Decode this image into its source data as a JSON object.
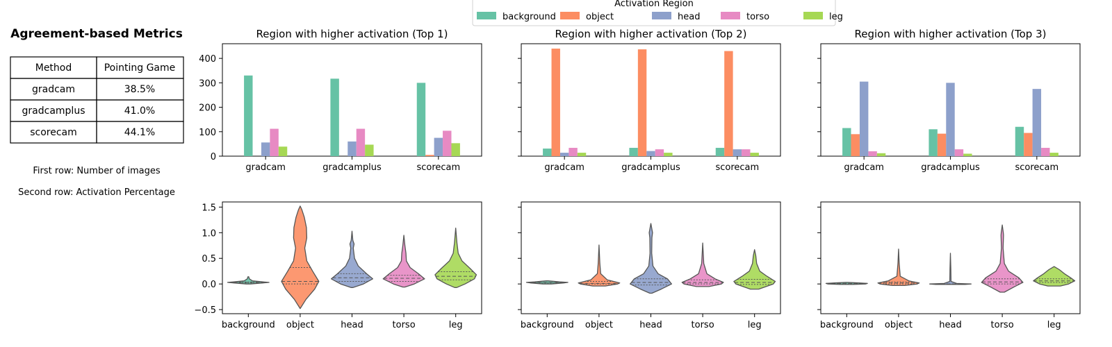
{
  "colors": {
    "background": "#66c2a5",
    "object": "#fc8d62",
    "head": "#8da0cb",
    "torso": "#e78ac3",
    "leg": "#a6d854",
    "violin_edge": "#555555"
  },
  "metrics": {
    "title": "Agreement-based Metrics",
    "columns": [
      "Method",
      "Pointing Game"
    ],
    "rows": [
      [
        "gradcam",
        "38.5%"
      ],
      [
        "gradcamplus",
        "41.0%"
      ],
      [
        "scorecam",
        "44.1%"
      ]
    ],
    "note_1": "First row: Number of images",
    "note_2": "Second row: Activation Percentage"
  },
  "legend": {
    "title": "Activation Region",
    "items": [
      "background",
      "object",
      "head",
      "torso",
      "leg"
    ]
  },
  "chart_data": [
    {
      "type": "bar",
      "title": "Region with higher activation (Top 1)",
      "categories": [
        "gradcam",
        "gradcamplus",
        "scorecam"
      ],
      "ylim": [
        0,
        460
      ],
      "yticks": [
        0,
        100,
        200,
        300,
        400
      ],
      "series": [
        {
          "name": "background",
          "values": [
            330,
            317,
            300
          ]
        },
        {
          "name": "object",
          "values": [
            0,
            0,
            5
          ]
        },
        {
          "name": "head",
          "values": [
            56,
            60,
            75
          ]
        },
        {
          "name": "torso",
          "values": [
            112,
            112,
            104
          ]
        },
        {
          "name": "leg",
          "values": [
            39,
            47,
            53
          ]
        }
      ]
    },
    {
      "type": "bar",
      "title": "Region with higher activation (Top 2)",
      "categories": [
        "gradcam",
        "gradcamplus",
        "scorecam"
      ],
      "ylim": [
        0,
        460
      ],
      "yticks": [
        0,
        100,
        200,
        300,
        400
      ],
      "series": [
        {
          "name": "background",
          "values": [
            31,
            34,
            34
          ]
        },
        {
          "name": "object",
          "values": [
            440,
            437,
            430
          ]
        },
        {
          "name": "head",
          "values": [
            14,
            21,
            28
          ]
        },
        {
          "name": "torso",
          "values": [
            34,
            28,
            28
          ]
        },
        {
          "name": "leg",
          "values": [
            14,
            14,
            14
          ]
        }
      ]
    },
    {
      "type": "bar",
      "title": "Region with higher activation (Top 3)",
      "categories": [
        "gradcam",
        "gradcamplus",
        "scorecam"
      ],
      "ylim": [
        0,
        460
      ],
      "yticks": [
        0,
        100,
        200,
        300,
        400
      ],
      "series": [
        {
          "name": "background",
          "values": [
            115,
            110,
            120
          ]
        },
        {
          "name": "object",
          "values": [
            90,
            92,
            95
          ]
        },
        {
          "name": "head",
          "values": [
            305,
            300,
            275
          ]
        },
        {
          "name": "torso",
          "values": [
            20,
            28,
            34
          ]
        },
        {
          "name": "leg",
          "values": [
            12,
            10,
            14
          ]
        }
      ]
    },
    {
      "type": "violin",
      "categories": [
        "background",
        "object",
        "head",
        "torso",
        "leg"
      ],
      "ylim": [
        -0.58,
        1.6
      ],
      "yticks": [
        -0.5,
        0.0,
        0.5,
        1.0,
        1.5
      ],
      "violins": [
        {
          "min": 0.0,
          "max": 0.14,
          "q1": 0.02,
          "median": 0.03,
          "q3": 0.04,
          "profile": [
            [
              0.0,
              0.1
            ],
            [
              0.02,
              0.7
            ],
            [
              0.03,
              1.0
            ],
            [
              0.04,
              0.7
            ],
            [
              0.06,
              0.2
            ],
            [
              0.1,
              0.05
            ],
            [
              0.14,
              0.02
            ]
          ]
        },
        {
          "min": -0.48,
          "max": 1.52,
          "q1": 0.0,
          "median": 0.05,
          "q3": 0.32,
          "profile": [
            [
              -0.48,
              0.0
            ],
            [
              -0.3,
              0.28
            ],
            [
              -0.1,
              0.7
            ],
            [
              0.05,
              0.9
            ],
            [
              0.25,
              0.6
            ],
            [
              0.45,
              0.32
            ],
            [
              0.7,
              0.22
            ],
            [
              0.9,
              0.32
            ],
            [
              1.1,
              0.3
            ],
            [
              1.3,
              0.2
            ],
            [
              1.45,
              0.08
            ],
            [
              1.52,
              0.0
            ]
          ]
        },
        {
          "min": -0.07,
          "max": 1.03,
          "q1": 0.05,
          "median": 0.12,
          "q3": 0.2,
          "profile": [
            [
              -0.07,
              0.05
            ],
            [
              0.0,
              0.55
            ],
            [
              0.1,
              1.0
            ],
            [
              0.2,
              0.7
            ],
            [
              0.35,
              0.3
            ],
            [
              0.5,
              0.12
            ],
            [
              0.7,
              0.06
            ],
            [
              0.78,
              0.1
            ],
            [
              0.85,
              0.04
            ],
            [
              1.03,
              0.0
            ]
          ]
        },
        {
          "min": -0.06,
          "max": 0.95,
          "q1": 0.05,
          "median": 0.11,
          "q3": 0.17,
          "profile": [
            [
              -0.06,
              0.05
            ],
            [
              0.0,
              0.5
            ],
            [
              0.1,
              1.0
            ],
            [
              0.2,
              0.7
            ],
            [
              0.32,
              0.3
            ],
            [
              0.45,
              0.12
            ],
            [
              0.6,
              0.1
            ],
            [
              0.75,
              0.05
            ],
            [
              0.95,
              0.0
            ]
          ]
        },
        {
          "min": -0.07,
          "max": 1.09,
          "q1": 0.08,
          "median": 0.15,
          "q3": 0.24,
          "profile": [
            [
              -0.07,
              0.05
            ],
            [
              0.0,
              0.45
            ],
            [
              0.1,
              0.9
            ],
            [
              0.18,
              1.0
            ],
            [
              0.3,
              0.7
            ],
            [
              0.45,
              0.3
            ],
            [
              0.6,
              0.12
            ],
            [
              0.8,
              0.06
            ],
            [
              1.09,
              0.0
            ]
          ]
        }
      ]
    },
    {
      "type": "violin",
      "categories": [
        "background",
        "object",
        "head",
        "torso",
        "leg"
      ],
      "ylim": [
        -0.58,
        1.6
      ],
      "yticks": [
        -0.5,
        0.0,
        0.5,
        1.0,
        1.5
      ],
      "violins": [
        {
          "min": 0.0,
          "max": 0.06,
          "q1": 0.02,
          "median": 0.03,
          "q3": 0.03,
          "profile": [
            [
              0.0,
              0.2
            ],
            [
              0.02,
              0.8
            ],
            [
              0.03,
              1.0
            ],
            [
              0.04,
              0.6
            ],
            [
              0.06,
              0.05
            ]
          ]
        },
        {
          "min": -0.04,
          "max": 0.76,
          "q1": 0.0,
          "median": 0.01,
          "q3": 0.05,
          "profile": [
            [
              -0.04,
              0.3
            ],
            [
              0.0,
              0.9
            ],
            [
              0.02,
              1.0
            ],
            [
              0.08,
              0.4
            ],
            [
              0.2,
              0.08
            ],
            [
              0.4,
              0.04
            ],
            [
              0.76,
              0.0
            ]
          ]
        },
        {
          "min": -0.18,
          "max": 1.18,
          "q1": -0.02,
          "median": 0.03,
          "q3": 0.1,
          "profile": [
            [
              -0.18,
              0.05
            ],
            [
              -0.1,
              0.5
            ],
            [
              0.0,
              1.0
            ],
            [
              0.1,
              0.8
            ],
            [
              0.2,
              0.35
            ],
            [
              0.35,
              0.1
            ],
            [
              0.6,
              0.04
            ],
            [
              0.9,
              0.05
            ],
            [
              1.0,
              0.08
            ],
            [
              1.18,
              0.0
            ]
          ]
        },
        {
          "min": -0.05,
          "max": 0.8,
          "q1": 0.0,
          "median": 0.03,
          "q3": 0.08,
          "profile": [
            [
              -0.05,
              0.3
            ],
            [
              0.0,
              0.9
            ],
            [
              0.03,
              1.0
            ],
            [
              0.1,
              0.6
            ],
            [
              0.2,
              0.2
            ],
            [
              0.4,
              0.05
            ],
            [
              0.8,
              0.0
            ]
          ]
        },
        {
          "min": -0.1,
          "max": 0.67,
          "q1": -0.01,
          "median": 0.03,
          "q3": 0.09,
          "profile": [
            [
              -0.1,
              0.2
            ],
            [
              0.0,
              0.9
            ],
            [
              0.05,
              1.0
            ],
            [
              0.15,
              0.6
            ],
            [
              0.25,
              0.25
            ],
            [
              0.4,
              0.1
            ],
            [
              0.55,
              0.06
            ],
            [
              0.67,
              0.0
            ]
          ]
        }
      ]
    },
    {
      "type": "violin",
      "categories": [
        "background",
        "object",
        "head",
        "torso",
        "leg"
      ],
      "ylim": [
        -0.58,
        1.6
      ],
      "yticks": [
        -0.5,
        0.0,
        0.5,
        1.0,
        1.5
      ],
      "violins": [
        {
          "min": -0.01,
          "max": 0.03,
          "q1": 0.0,
          "median": 0.01,
          "q3": 0.01,
          "profile": [
            [
              -0.01,
              0.3
            ],
            [
              0.0,
              0.9
            ],
            [
              0.01,
              1.0
            ],
            [
              0.02,
              0.6
            ],
            [
              0.03,
              0.05
            ]
          ]
        },
        {
          "min": -0.03,
          "max": 0.68,
          "q1": 0.0,
          "median": 0.02,
          "q3": 0.04,
          "profile": [
            [
              -0.03,
              0.3
            ],
            [
              0.0,
              0.9
            ],
            [
              0.02,
              1.0
            ],
            [
              0.06,
              0.5
            ],
            [
              0.15,
              0.08
            ],
            [
              0.4,
              0.03
            ],
            [
              0.68,
              0.0
            ]
          ]
        },
        {
          "min": -0.01,
          "max": 0.6,
          "q1": -0.01,
          "median": 0.0,
          "q3": 0.0,
          "profile": [
            [
              -0.01,
              0.7
            ],
            [
              0.0,
              1.0
            ],
            [
              0.01,
              0.3
            ],
            [
              0.05,
              0.03
            ],
            [
              0.3,
              0.02
            ],
            [
              0.6,
              0.0
            ]
          ]
        },
        {
          "min": -0.16,
          "max": 1.15,
          "q1": 0.0,
          "median": 0.04,
          "q3": 0.1,
          "profile": [
            [
              -0.16,
              0.1
            ],
            [
              -0.05,
              0.6
            ],
            [
              0.03,
              1.0
            ],
            [
              0.12,
              0.8
            ],
            [
              0.25,
              0.3
            ],
            [
              0.4,
              0.1
            ],
            [
              0.7,
              0.04
            ],
            [
              0.95,
              0.06
            ],
            [
              1.0,
              0.05
            ],
            [
              1.15,
              0.0
            ]
          ]
        },
        {
          "min": -0.04,
          "max": 0.34,
          "q1": 0.03,
          "median": 0.06,
          "q3": 0.1,
          "profile": [
            [
              -0.04,
              0.3
            ],
            [
              0.0,
              0.7
            ],
            [
              0.06,
              1.0
            ],
            [
              0.12,
              0.8
            ],
            [
              0.2,
              0.5
            ],
            [
              0.28,
              0.25
            ],
            [
              0.34,
              0.0
            ]
          ]
        }
      ]
    }
  ]
}
